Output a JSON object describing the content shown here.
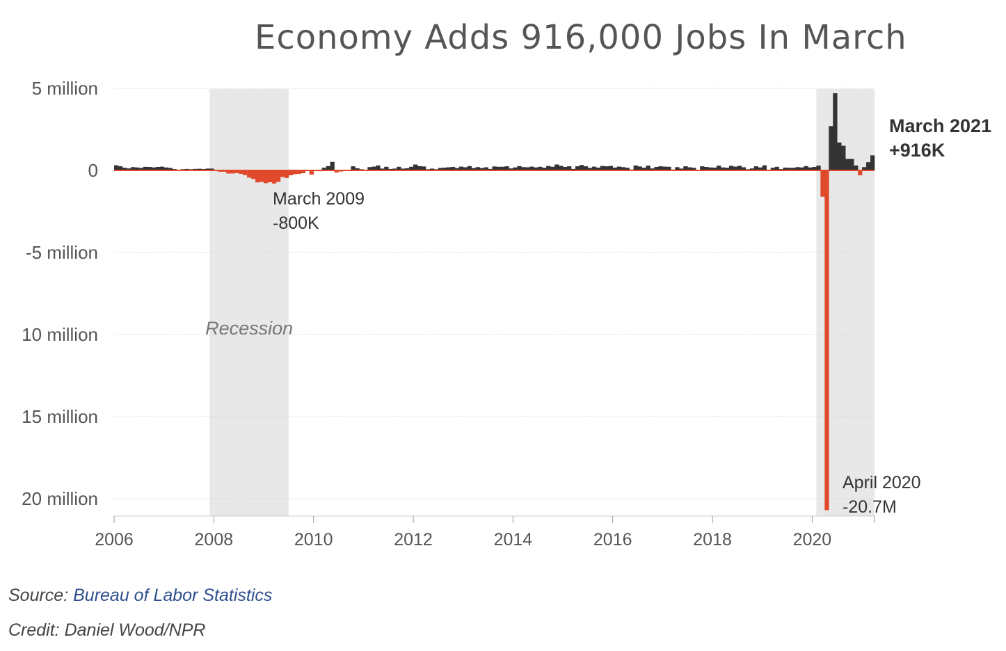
{
  "title": "Economy Adds 916,000 Jobs In March",
  "source": {
    "prefix": "Source: ",
    "name": "Bureau of Labor Statistics"
  },
  "credit": "Credit: Daniel Wood/NPR",
  "colors": {
    "positive": "#333333",
    "negative": "#e0492b",
    "shade": "#e8e8e8",
    "grid": "#d7d7d7",
    "zero": "#e0492b"
  },
  "chart_data": {
    "type": "bar",
    "ylabel": "",
    "xlabel": "",
    "x_start": "2006-01",
    "x_end": "2021-03",
    "y_range_millions": [
      -20.7,
      5
    ],
    "y_ticks": [
      {
        "value": 5,
        "label": "5 million"
      },
      {
        "value": 0,
        "label": "0"
      },
      {
        "value": -5,
        "label": "-5 million"
      },
      {
        "value": -10,
        "label": "10 million"
      },
      {
        "value": -15,
        "label": "15 million"
      },
      {
        "value": -20,
        "label": "20 million"
      }
    ],
    "x_ticks": [
      "2006",
      "2008",
      "2010",
      "2012",
      "2014",
      "2016",
      "2018",
      "2020"
    ],
    "shaded_regions": [
      {
        "label": "Recession",
        "start": "2007-12",
        "end": "2009-06"
      },
      {
        "label": "",
        "start": "2020-02",
        "end": "2021-03"
      }
    ],
    "annotations": [
      {
        "line1": "March 2009",
        "line2": "-800K",
        "bold": false
      },
      {
        "line1": "April 2020",
        "line2": "-20.7M",
        "bold": false
      },
      {
        "line1": "March 2021",
        "line2": "+916K",
        "bold": true
      }
    ],
    "series": [
      {
        "start": "2006-01",
        "values_thousands": [
          310,
          250,
          160,
          120,
          200,
          180,
          150,
          220,
          210,
          180,
          210,
          230,
          180,
          150,
          80,
          40,
          70,
          90,
          70,
          90,
          100,
          80,
          110,
          110,
          15,
          -80,
          -80,
          -190,
          -190,
          -160,
          -210,
          -290,
          -440,
          -520,
          -730,
          -700,
          -780,
          -720,
          -800,
          -700,
          -400,
          -460,
          -300,
          -230,
          -210,
          -170,
          -30,
          -260,
          -10,
          -50,
          160,
          260,
          520,
          -130,
          -70,
          -40,
          -40,
          250,
          130,
          70,
          40,
          200,
          230,
          300,
          110,
          220,
          90,
          110,
          220,
          110,
          130,
          220,
          360,
          260,
          240,
          70,
          110,
          70,
          150,
          170,
          190,
          210,
          140,
          230,
          190,
          260,
          140,
          200,
          140,
          190,
          90,
          240,
          220,
          220,
          250,
          120,
          180,
          260,
          200,
          190,
          230,
          180,
          220,
          160,
          270,
          220,
          360,
          280,
          210,
          250,
          90,
          250,
          330,
          250,
          150,
          230,
          170,
          270,
          250,
          270,
          170,
          230,
          200,
          160,
          50,
          300,
          240,
          160,
          290,
          120,
          210,
          250,
          230,
          220,
          50,
          200,
          110,
          250,
          190,
          160,
          20,
          250,
          210,
          180,
          170,
          290,
          180,
          160,
          280,
          230,
          280,
          190,
          70,
          120,
          250,
          180,
          310,
          40,
          160,
          220,
          80,
          170,
          160,
          160,
          200,
          180,
          260,
          180,
          210,
          290,
          -1600,
          -20700,
          2700,
          4700,
          1700,
          1500,
          700,
          700,
          300,
          -300,
          200,
          500,
          916
        ]
      }
    ]
  }
}
